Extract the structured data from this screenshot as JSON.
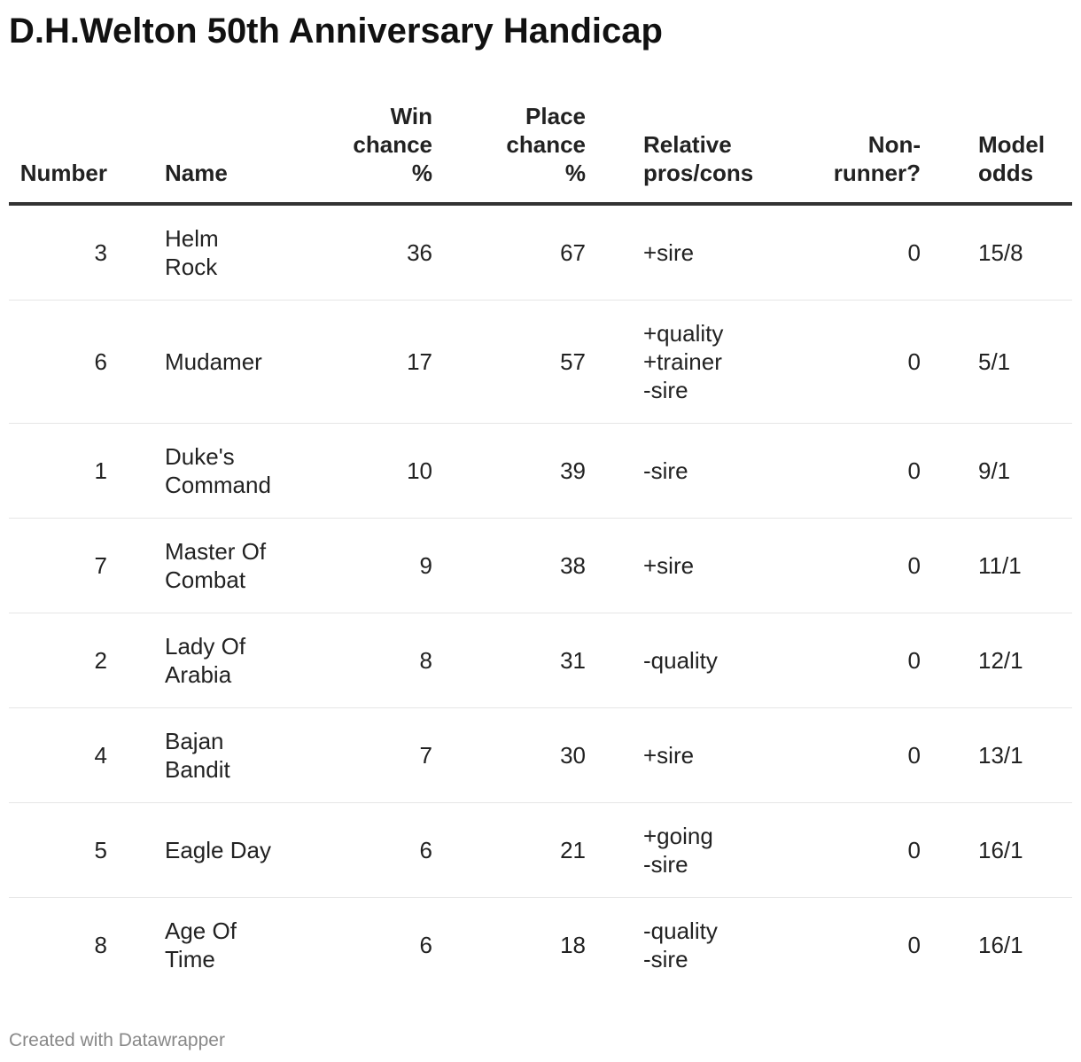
{
  "title": "D.H.Welton 50th Anniversary Handicap",
  "table": {
    "header": [
      [
        "Number"
      ],
      [
        "Name"
      ],
      [
        "Win",
        "chance",
        "%"
      ],
      [
        "Place",
        "chance",
        "%"
      ],
      [
        "Relative",
        "pros/cons"
      ],
      [
        "Non-",
        "runner?"
      ],
      [
        "Model",
        "odds"
      ]
    ],
    "rows": [
      [
        [
          "3"
        ],
        [
          "Helm",
          "Rock"
        ],
        [
          "36"
        ],
        [
          "67"
        ],
        [
          "+sire"
        ],
        [
          "0"
        ],
        [
          "15/8"
        ]
      ],
      [
        [
          "6"
        ],
        [
          "Mudamer"
        ],
        [
          "17"
        ],
        [
          "57"
        ],
        [
          "+quality",
          "+trainer",
          "-sire"
        ],
        [
          "0"
        ],
        [
          "5/1"
        ]
      ],
      [
        [
          "1"
        ],
        [
          "Duke's",
          "Command"
        ],
        [
          "10"
        ],
        [
          "39"
        ],
        [
          "-sire"
        ],
        [
          "0"
        ],
        [
          "9/1"
        ]
      ],
      [
        [
          "7"
        ],
        [
          "Master Of",
          "Combat"
        ],
        [
          "9"
        ],
        [
          "38"
        ],
        [
          "+sire"
        ],
        [
          "0"
        ],
        [
          "11/1"
        ]
      ],
      [
        [
          "2"
        ],
        [
          "Lady Of",
          "Arabia"
        ],
        [
          "8"
        ],
        [
          "31"
        ],
        [
          "-quality"
        ],
        [
          "0"
        ],
        [
          "12/1"
        ]
      ],
      [
        [
          "4"
        ],
        [
          "Bajan",
          "Bandit"
        ],
        [
          "7"
        ],
        [
          "30"
        ],
        [
          "+sire"
        ],
        [
          "0"
        ],
        [
          "13/1"
        ]
      ],
      [
        [
          "5"
        ],
        [
          "Eagle Day"
        ],
        [
          "6"
        ],
        [
          "21"
        ],
        [
          "+going",
          "-sire"
        ],
        [
          "0"
        ],
        [
          "16/1"
        ]
      ],
      [
        [
          "8"
        ],
        [
          "Age Of",
          "Time"
        ],
        [
          "6"
        ],
        [
          "18"
        ],
        [
          "-quality",
          "-sire"
        ],
        [
          "0"
        ],
        [
          "16/1"
        ]
      ]
    ]
  },
  "footer": "Created with Datawrapper"
}
